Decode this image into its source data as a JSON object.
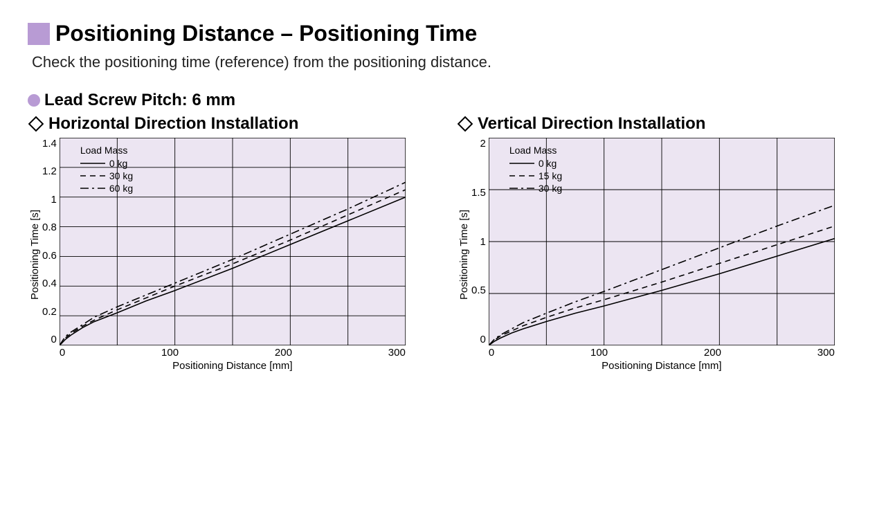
{
  "header": {
    "title": "Positioning Distance – Positioning Time",
    "subtitle": "Check the positioning time (reference) from the positioning distance.",
    "accent_color": "#b89bd4"
  },
  "section": {
    "label": "Lead Screw Pitch: 6 mm"
  },
  "charts": [
    {
      "id": "horizontal",
      "title": "Horizontal Direction Installation",
      "type": "line",
      "background_color": "#ece5f2",
      "grid_color": "#000000",
      "axis_color": "#000000",
      "line_color": "#000000",
      "line_width": 1.6,
      "xlabel": "Positioning Distance [mm]",
      "ylabel": "Positioning Time [s]",
      "xlim": [
        0,
        300
      ],
      "ylim": [
        0,
        1.4
      ],
      "xticks": [
        0,
        100,
        200,
        300
      ],
      "yticks": [
        0,
        0.2,
        0.4,
        0.6,
        0.8,
        1.0,
        1.2,
        1.4
      ],
      "x_minor_grid": [
        50,
        150,
        250
      ],
      "legend_title": "Load Mass",
      "series": [
        {
          "label": "0 kg",
          "dash": "solid",
          "points": [
            [
              0,
              0
            ],
            [
              5,
              0.04
            ],
            [
              10,
              0.07
            ],
            [
              20,
              0.12
            ],
            [
              30,
              0.16
            ],
            [
              50,
              0.22
            ],
            [
              75,
              0.3
            ],
            [
              100,
              0.37
            ],
            [
              150,
              0.52
            ],
            [
              200,
              0.68
            ],
            [
              250,
              0.84
            ],
            [
              300,
              1.0
            ]
          ]
        },
        {
          "label": "30 kg",
          "dash": "dashed",
          "points": [
            [
              0,
              0
            ],
            [
              5,
              0.05
            ],
            [
              10,
              0.08
            ],
            [
              20,
              0.13
            ],
            [
              30,
              0.17
            ],
            [
              50,
              0.24
            ],
            [
              75,
              0.32
            ],
            [
              100,
              0.4
            ],
            [
              150,
              0.55
            ],
            [
              200,
              0.71
            ],
            [
              250,
              0.88
            ],
            [
              300,
              1.05
            ]
          ]
        },
        {
          "label": "60 kg",
          "dash": "dashdot",
          "points": [
            [
              0,
              0
            ],
            [
              5,
              0.06
            ],
            [
              10,
              0.09
            ],
            [
              20,
              0.14
            ],
            [
              30,
              0.19
            ],
            [
              50,
              0.26
            ],
            [
              75,
              0.34
            ],
            [
              100,
              0.42
            ],
            [
              150,
              0.58
            ],
            [
              200,
              0.75
            ],
            [
              250,
              0.92
            ],
            [
              300,
              1.1
            ]
          ]
        }
      ]
    },
    {
      "id": "vertical",
      "title": "Vertical Direction Installation",
      "type": "line",
      "background_color": "#ece5f2",
      "grid_color": "#000000",
      "axis_color": "#000000",
      "line_color": "#000000",
      "line_width": 1.6,
      "xlabel": "Positioning Distance [mm]",
      "ylabel": "Positioning Time [s]",
      "xlim": [
        0,
        300
      ],
      "ylim": [
        0,
        2.0
      ],
      "xticks": [
        0,
        100,
        200,
        300
      ],
      "yticks": [
        0,
        0.5,
        1.0,
        1.5,
        2.0
      ],
      "x_minor_grid": [
        50,
        150,
        250
      ],
      "legend_title": "Load Mass",
      "series": [
        {
          "label": "0 kg",
          "dash": "solid",
          "points": [
            [
              0,
              0
            ],
            [
              5,
              0.04
            ],
            [
              10,
              0.07
            ],
            [
              20,
              0.12
            ],
            [
              30,
              0.16
            ],
            [
              50,
              0.23
            ],
            [
              75,
              0.31
            ],
            [
              100,
              0.38
            ],
            [
              150,
              0.53
            ],
            [
              200,
              0.69
            ],
            [
              250,
              0.86
            ],
            [
              300,
              1.03
            ]
          ]
        },
        {
          "label": "15 kg",
          "dash": "dashed",
          "points": [
            [
              0,
              0
            ],
            [
              5,
              0.05
            ],
            [
              10,
              0.09
            ],
            [
              20,
              0.14
            ],
            [
              30,
              0.19
            ],
            [
              50,
              0.27
            ],
            [
              75,
              0.36
            ],
            [
              100,
              0.44
            ],
            [
              150,
              0.61
            ],
            [
              200,
              0.79
            ],
            [
              250,
              0.97
            ],
            [
              300,
              1.15
            ]
          ]
        },
        {
          "label": "30 kg",
          "dash": "dashdot",
          "points": [
            [
              0,
              0
            ],
            [
              5,
              0.06
            ],
            [
              10,
              0.1
            ],
            [
              20,
              0.16
            ],
            [
              30,
              0.22
            ],
            [
              50,
              0.31
            ],
            [
              75,
              0.42
            ],
            [
              100,
              0.52
            ],
            [
              150,
              0.73
            ],
            [
              200,
              0.94
            ],
            [
              250,
              1.15
            ],
            [
              300,
              1.35
            ]
          ]
        }
      ]
    }
  ]
}
